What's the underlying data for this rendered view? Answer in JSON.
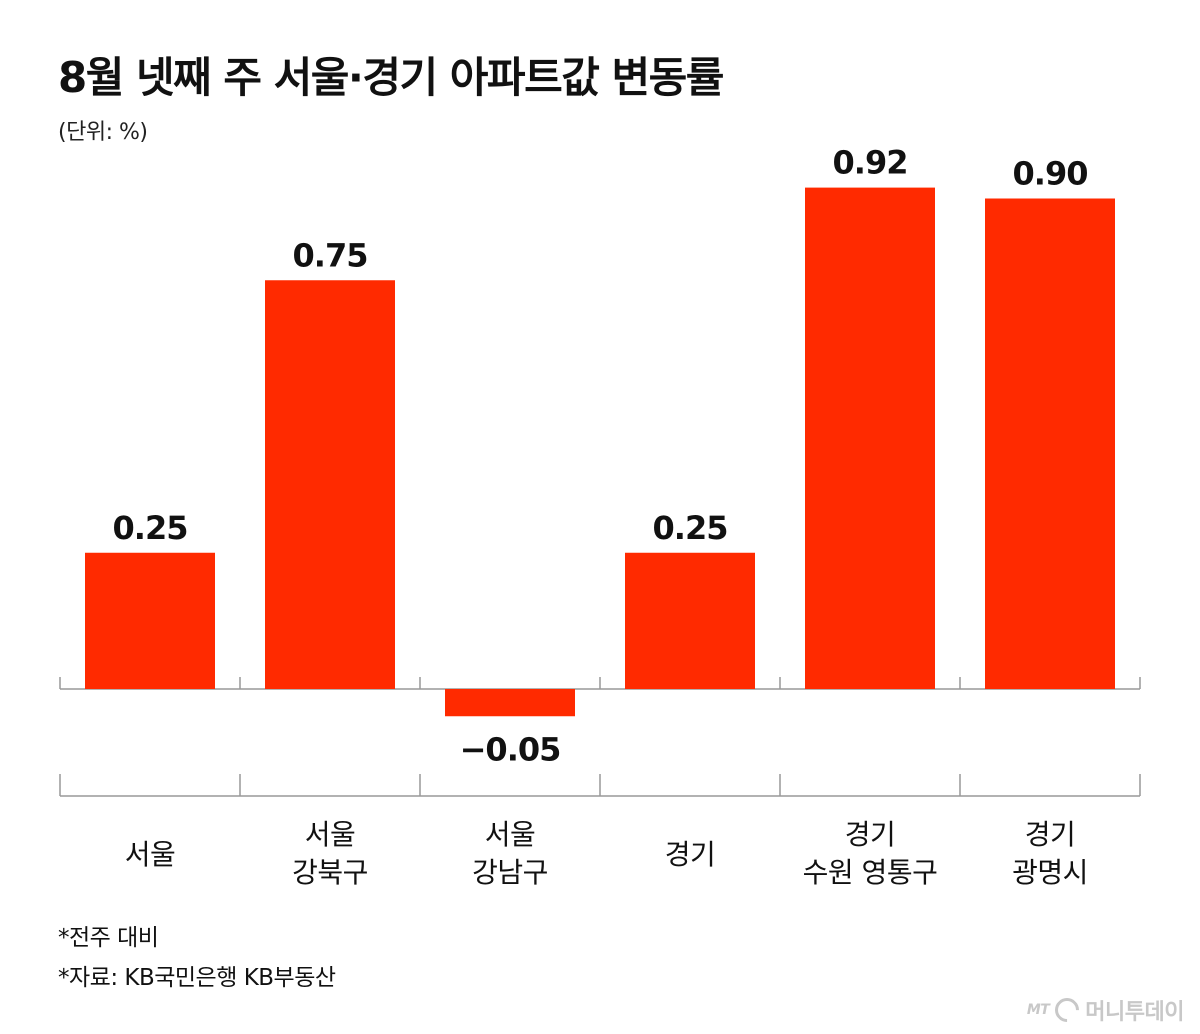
{
  "header": {
    "title": "8월 넷째 주 서울·경기 아파트값 변동률",
    "unit": "(단위: %)"
  },
  "chart_data": {
    "type": "bar",
    "categories": [
      [
        "서울"
      ],
      [
        "서울",
        "강북구"
      ],
      [
        "서울",
        "강남구"
      ],
      [
        "경기"
      ],
      [
        "경기",
        "수원 영통구"
      ],
      [
        "경기",
        "광명시"
      ]
    ],
    "values": [
      0.25,
      0.75,
      -0.05,
      0.25,
      0.92,
      0.9
    ],
    "value_labels": [
      "0.25",
      "0.75",
      "−0.05",
      "0.25",
      "0.92",
      "0.90"
    ],
    "title": "8월 넷째 주 서울·경기 아파트값 변동률",
    "ylabel": "",
    "xlabel": "",
    "ylim": [
      -0.1,
      1.0
    ],
    "grid": false,
    "bar_color": "#ff2a00"
  },
  "notes": {
    "basis": "*전주 대비",
    "source": "*자료: KB국민은행 KB부동산"
  },
  "brand": {
    "mark": "MT",
    "name": "머니투데이"
  }
}
